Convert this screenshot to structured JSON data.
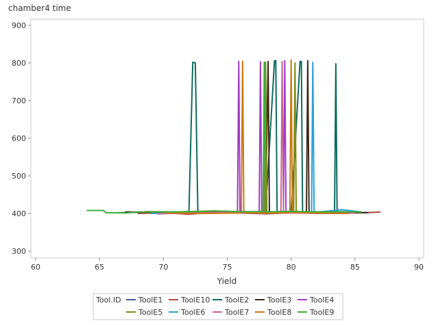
{
  "chart_data": {
    "type": "line",
    "ylabel": "chamber4 time",
    "xlabel": "Yield",
    "xlim": [
      60,
      90
    ],
    "ylim": [
      290,
      910
    ],
    "x_ticks": [
      60,
      65,
      70,
      75,
      80,
      85,
      90
    ],
    "y_ticks": [
      300,
      400,
      500,
      600,
      700,
      800,
      900
    ],
    "legend": {
      "title": "Tool.ID",
      "placement": "bottom-center"
    },
    "grid": false,
    "series": [
      {
        "name": "ToolE1",
        "color": "#3a5a9c",
        "x": [
          67.5,
          69.0,
          71.0,
          73.0,
          75.0,
          77.0,
          79.0,
          81.0,
          83.0,
          85.0,
          86.5
        ],
        "y": [
          403,
          402,
          404,
          401,
          404,
          402,
          405,
          401,
          403,
          402,
          403
        ]
      },
      {
        "name": "ToolE10",
        "color": "#b44a3e",
        "x": [
          68.0,
          70.0,
          72.0,
          74.0,
          76.0,
          78.0,
          80.0,
          82.0,
          84.0,
          86.0,
          87.0
        ],
        "y": [
          400,
          402,
          398,
          403,
          401,
          399,
          402,
          400,
          401,
          402,
          404
        ]
      },
      {
        "name": "ToolE2",
        "color": "#0e6a5c",
        "x": [
          66.5,
          68.0,
          70.0,
          72.0,
          72.3,
          72.5,
          72.7,
          74.0,
          76.0,
          78.0,
          78.7,
          78.8,
          78.9,
          79.0,
          80.0,
          80.7,
          80.8,
          80.9,
          82.0,
          83.4,
          83.5,
          83.6,
          85.0,
          86.0
        ],
        "y": [
          402,
          403,
          404,
          405,
          802,
          800,
          405,
          406,
          404,
          405,
          806,
          806,
          405,
          404,
          404,
          804,
          804,
          403,
          404,
          405,
          798,
          404,
          403,
          402
        ]
      },
      {
        "name": "ToolE3",
        "color": "#3b2a1a",
        "x": [
          67.0,
          70.0,
          73.0,
          76.0,
          78.0,
          78.2,
          78.3,
          79.0,
          80.0,
          81.2,
          81.3,
          81.4,
          83.0,
          86.0
        ],
        "y": [
          404,
          403,
          405,
          404,
          403,
          804,
          403,
          404,
          403,
          404,
          806,
          404,
          403,
          402
        ]
      },
      {
        "name": "ToolE4",
        "color": "#a23cc4",
        "x": [
          70.0,
          73.0,
          75.8,
          75.9,
          76.0,
          77.5,
          77.6,
          77.7,
          79.4,
          79.5,
          79.6,
          82.0,
          85.0
        ],
        "y": [
          401,
          403,
          403,
          804,
          402,
          402,
          803,
          403,
          402,
          806,
          401,
          402,
          403
        ]
      },
      {
        "name": "ToolE5",
        "color": "#7f8a1a",
        "x": [
          68.5,
          71.0,
          74.0,
          77.0,
          77.9,
          78.0,
          78.1,
          79.5,
          80.2,
          80.3,
          80.4,
          83.0,
          85.5
        ],
        "y": [
          405,
          404,
          403,
          404,
          406,
          802,
          405,
          404,
          404,
          800,
          404,
          405,
          404
        ]
      },
      {
        "name": "ToolE6",
        "color": "#29a0d6",
        "x": [
          69.0,
          72.0,
          75.0,
          78.0,
          80.0,
          81.6,
          81.7,
          81.8,
          84.0,
          85.5
        ],
        "y": [
          400,
          401,
          402,
          401,
          402,
          401,
          802,
          403,
          410,
          404
        ]
      },
      {
        "name": "ToolE7",
        "color": "#c86496",
        "x": [
          69.5,
          72.0,
          75.0,
          78.0,
          79.2,
          79.3,
          79.4,
          81.0,
          84.0,
          85.0
        ],
        "y": [
          399,
          401,
          403,
          401,
          402,
          803,
          402,
          401,
          400,
          401
        ]
      },
      {
        "name": "ToolE8",
        "color": "#c97a10",
        "x": [
          70.0,
          73.0,
          76.1,
          76.2,
          76.3,
          78.5,
          79.9,
          80.0,
          80.1,
          82.0,
          84.5
        ],
        "y": [
          402,
          400,
          401,
          804,
          402,
          401,
          402,
          808,
          403,
          401,
          400
        ]
      },
      {
        "name": "ToolE9",
        "color": "#3fae3a",
        "x": [
          64.0,
          64.5,
          65.0,
          65.3,
          65.5,
          66.0,
          67.0,
          68.0,
          70.0,
          72.0,
          74.0,
          76.0,
          77.8,
          77.9,
          78.0,
          80.0,
          82.0,
          84.0,
          85.5
        ],
        "y": [
          408,
          408,
          408,
          408,
          402,
          402,
          401,
          404,
          404,
          405,
          407,
          405,
          405,
          802,
          404,
          406,
          404,
          405,
          404
        ]
      }
    ]
  }
}
